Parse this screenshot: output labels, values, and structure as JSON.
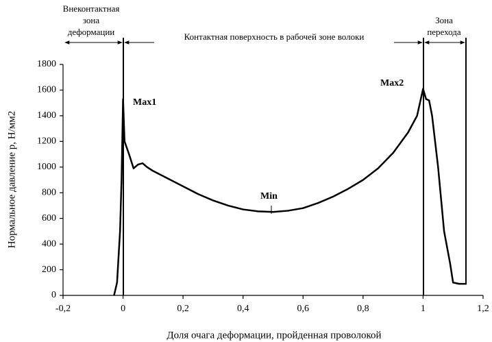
{
  "chart_data": {
    "type": "line",
    "x_label": "Доля очага деформации, пройденная проволокой",
    "y_label": "Нормальное давление p, Н/мм2",
    "annotations": [
      "Max1",
      "Max2",
      "Min"
    ],
    "zones": [
      [
        "Внеконтактная",
        "зона",
        "деформации"
      ],
      [
        "Контактная поверхность в рабочей зоне волоки"
      ],
      [
        "Зона",
        "перехода"
      ]
    ],
    "xlim": [
      -0.2,
      1.2
    ],
    "xticks": [
      {
        "value": -0.2,
        "label": "-0,2"
      },
      0,
      {
        "value": 0.2,
        "label": "0,2"
      },
      {
        "value": 0.4,
        "label": "0,4"
      },
      {
        "value": 0.6,
        "label": "0,6"
      },
      {
        "value": 0.8,
        "label": "0,8"
      },
      1,
      {
        "value": 1.2,
        "label": "1,2"
      }
    ],
    "ylim": [
      0,
      1800
    ],
    "yticks": [
      0,
      200,
      400,
      600,
      800,
      1000,
      1200,
      1400,
      1600,
      1800
    ],
    "grid": false,
    "series": [
      {
        "color": "#000000",
        "x": [
          -0.03,
          -0.02,
          -0.01,
          -0.005,
          0,
          0.005,
          0.02,
          0.035,
          0.05,
          0.065,
          0.08,
          0.1,
          0.15,
          0.2,
          0.25,
          0.3,
          0.35,
          0.4,
          0.45,
          0.5,
          0.55,
          0.6,
          0.65,
          0.7,
          0.75,
          0.8,
          0.85,
          0.9,
          0.95,
          0.98,
          1.0,
          1.01,
          1.02,
          1.03,
          1.05,
          1.07,
          1.09,
          1.1,
          1.12,
          1.145
        ],
        "values": [
          0,
          100,
          500,
          900,
          1530,
          1200,
          1100,
          990,
          1020,
          1030,
          1000,
          970,
          910,
          850,
          790,
          740,
          700,
          670,
          655,
          650,
          660,
          680,
          720,
          770,
          830,
          900,
          990,
          1110,
          1270,
          1400,
          1610,
          1530,
          1520,
          1400,
          1000,
          500,
          250,
          100,
          90,
          90
        ]
      }
    ]
  }
}
